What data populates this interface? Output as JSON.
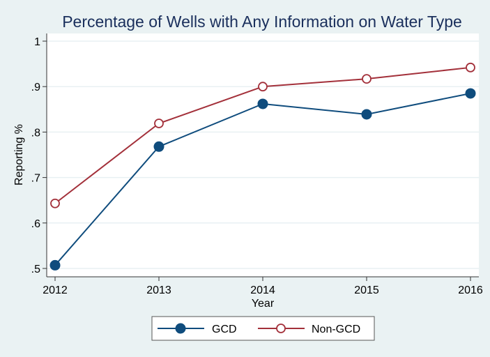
{
  "chart_data": {
    "type": "line",
    "title": "Percentage of Wells with Any Information on Water Type",
    "xlabel": "Year",
    "ylabel": "Reporting %",
    "x": [
      2012,
      2013,
      2014,
      2015,
      2016
    ],
    "xticks": [
      "2012",
      "2013",
      "2014",
      "2015",
      "2016"
    ],
    "yticks": [
      {
        "value": 0.5,
        "label": ".5"
      },
      {
        "value": 0.6,
        "label": ".6"
      },
      {
        "value": 0.7,
        "label": ".7"
      },
      {
        "value": 0.8,
        "label": ".8"
      },
      {
        "value": 0.9,
        "label": ".9"
      },
      {
        "value": 1.0,
        "label": "1"
      }
    ],
    "ylim": [
      0.5,
      1.0
    ],
    "xlim": [
      2012,
      2016
    ],
    "grid": true,
    "legend_position": "bottom",
    "series": [
      {
        "name": "GCD",
        "color": "#0f4c7d",
        "marker": "filled-circle",
        "values": [
          0.507,
          0.768,
          0.862,
          0.839,
          0.885
        ]
      },
      {
        "name": "Non-GCD",
        "color": "#a3303a",
        "marker": "hollow-circle",
        "values": [
          0.643,
          0.819,
          0.9,
          0.917,
          0.942
        ]
      }
    ]
  }
}
